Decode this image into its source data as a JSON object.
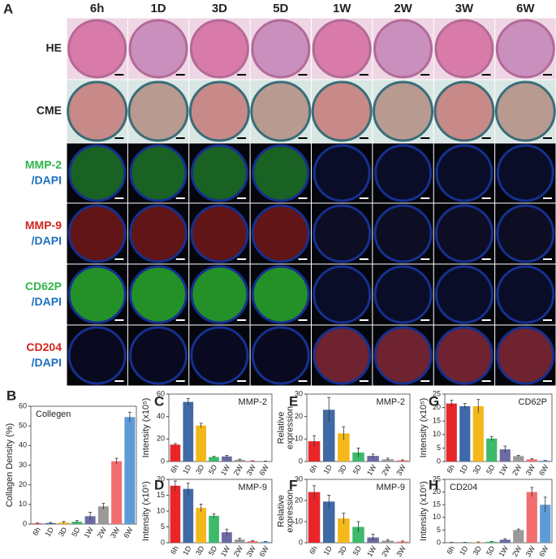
{
  "panel_a": {
    "label": "A",
    "columns": [
      "6h",
      "1D",
      "3D",
      "5D",
      "1W",
      "2W",
      "3W",
      "6W"
    ],
    "rows": [
      {
        "label": "HE"
      },
      {
        "label": "CME"
      },
      {
        "label": "MMP-2",
        "stain": "/DAPI"
      },
      {
        "label": "MMP-9",
        "stain": "/DAPI"
      },
      {
        "label": "CD62P",
        "stain": "/DAPI"
      },
      {
        "label": "CD204",
        "stain": "/DAPI"
      }
    ]
  },
  "chart_data": [
    {
      "type": "bar",
      "panel": "B",
      "ylabel": [
        "Collagen Density (%)"
      ],
      "annotation": "Collegen",
      "annotation_corner": "top-left",
      "categories": [
        "6h",
        "1D",
        "3D",
        "5D",
        "1W",
        "2W",
        "3W",
        "6W"
      ],
      "values": [
        0.3,
        0.5,
        0.8,
        1.2,
        4,
        9,
        32,
        54.5
      ],
      "errors": [
        0.2,
        0.3,
        0.5,
        0.6,
        2,
        1.5,
        1.5,
        2.5
      ],
      "colors": [
        "#e8262a",
        "#3f6aa6",
        "#f4b81c",
        "#3dba6b",
        "#6c6aa3",
        "#9a9a9a",
        "#f26d6d",
        "#5d9bd6"
      ],
      "ylim": [
        0,
        60
      ],
      "yticks": [
        0,
        10,
        20,
        30,
        40,
        50,
        60
      ]
    },
    {
      "type": "bar",
      "panel": "C",
      "ylabel": [
        "Intensity (x10⁵)"
      ],
      "annotation": "MMP-2",
      "annotation_corner": "top-right",
      "categories": [
        "6h",
        "1D",
        "3D",
        "5D",
        "1W",
        "2W",
        "3W",
        "6W"
      ],
      "values": [
        15,
        53,
        32,
        4,
        4.5,
        1.5,
        0.5,
        0.3
      ],
      "errors": [
        1,
        3,
        2,
        0.5,
        1,
        0.5,
        0.2,
        0.1
      ],
      "colors": [
        "#e8262a",
        "#3f6aa6",
        "#f4b81c",
        "#3dba6b",
        "#6c6aa3",
        "#9a9a9a",
        "#f26d6d",
        "#5d9bd6"
      ],
      "ylim": [
        0,
        60
      ],
      "yticks": [
        0,
        20,
        40,
        60
      ]
    },
    {
      "type": "bar",
      "panel": "D",
      "ylabel": [
        "Intensity (x10⁵)"
      ],
      "annotation": "MMP-9",
      "annotation_corner": "top-right",
      "categories": [
        "6h",
        "1D",
        "3D",
        "5D",
        "1W",
        "2W",
        "3W",
        "6W"
      ],
      "values": [
        18,
        17,
        11,
        8.5,
        3.3,
        1,
        0.5,
        0.3
      ],
      "errors": [
        1.5,
        1.8,
        1.2,
        0.6,
        1,
        0.4,
        0.2,
        0.1
      ],
      "colors": [
        "#e8262a",
        "#3f6aa6",
        "#f4b81c",
        "#3dba6b",
        "#6c6aa3",
        "#9a9a9a",
        "#f26d6d",
        "#5d9bd6"
      ],
      "ylim": [
        0,
        20
      ],
      "yticks": [
        0,
        5,
        10,
        15,
        20
      ]
    },
    {
      "type": "bar",
      "panel": "E",
      "ylabel": [
        "Relative",
        "expression"
      ],
      "annotation": "MMP-2",
      "annotation_corner": "top-right",
      "categories": [
        "6h",
        "1D",
        "3D",
        "5D",
        "1W",
        "2W",
        "3W"
      ],
      "values": [
        9,
        23,
        12.5,
        4,
        2.5,
        1,
        0.5
      ],
      "errors": [
        2.5,
        5.5,
        3,
        2,
        0.8,
        0.5,
        0.2
      ],
      "colors": [
        "#e8262a",
        "#3f6aa6",
        "#f4b81c",
        "#3dba6b",
        "#6c6aa3",
        "#9a9a9a",
        "#f26d6d"
      ],
      "ylim": [
        0,
        30
      ],
      "yticks": [
        0,
        10,
        20,
        30
      ]
    },
    {
      "type": "bar",
      "panel": "F",
      "ylabel": [
        "Relative",
        "expression"
      ],
      "annotation": "MMP-9",
      "annotation_corner": "top-right",
      "categories": [
        "6h",
        "1D",
        "3D",
        "5D",
        "1W",
        "2W",
        "3W"
      ],
      "values": [
        24,
        19.5,
        11.5,
        7.5,
        2.5,
        1,
        0.5
      ],
      "errors": [
        3,
        3,
        2.5,
        2.5,
        1.5,
        0.5,
        0.3
      ],
      "colors": [
        "#e8262a",
        "#3f6aa6",
        "#f4b81c",
        "#3dba6b",
        "#6c6aa3",
        "#9a9a9a",
        "#f26d6d"
      ],
      "ylim": [
        0,
        30
      ],
      "yticks": [
        0,
        10,
        20,
        30
      ]
    },
    {
      "type": "bar",
      "panel": "G",
      "ylabel": [
        "Intensity (x10⁵)"
      ],
      "annotation": "CD62P",
      "annotation_corner": "top-right",
      "categories": [
        "6h",
        "1D",
        "3D",
        "5D",
        "1W",
        "2W",
        "3W",
        "6W"
      ],
      "values": [
        21.5,
        20.5,
        20.5,
        8.5,
        4.5,
        2,
        0.8,
        0.3
      ],
      "errors": [
        1.2,
        1,
        2.5,
        0.8,
        1.2,
        0.3,
        0.2,
        0.1
      ],
      "colors": [
        "#e8262a",
        "#3f6aa6",
        "#f4b81c",
        "#3dba6b",
        "#6c6aa3",
        "#9a9a9a",
        "#f26d6d",
        "#5d9bd6"
      ],
      "ylim": [
        0,
        25
      ],
      "yticks": [
        0,
        5,
        10,
        15,
        20,
        25
      ]
    },
    {
      "type": "bar",
      "panel": "H",
      "ylabel": [
        "Intensity (x10⁵)"
      ],
      "annotation": "CD204",
      "annotation_corner": "top-left",
      "categories": [
        "6h",
        "1D",
        "3D",
        "5D",
        "1W",
        "2W",
        "3W",
        "6W"
      ],
      "values": [
        0.1,
        0.1,
        0.2,
        0.4,
        1.2,
        5,
        20,
        15
      ],
      "errors": [
        0.05,
        0.05,
        0.1,
        0.1,
        0.4,
        0.4,
        1.8,
        3
      ],
      "colors": [
        "#e8262a",
        "#3f6aa6",
        "#f4b81c",
        "#3dba6b",
        "#6c6aa3",
        "#9a9a9a",
        "#f26d6d",
        "#5d9bd6"
      ],
      "ylim": [
        0,
        25
      ],
      "yticks": [
        0,
        5,
        10,
        15,
        20,
        25
      ]
    }
  ]
}
